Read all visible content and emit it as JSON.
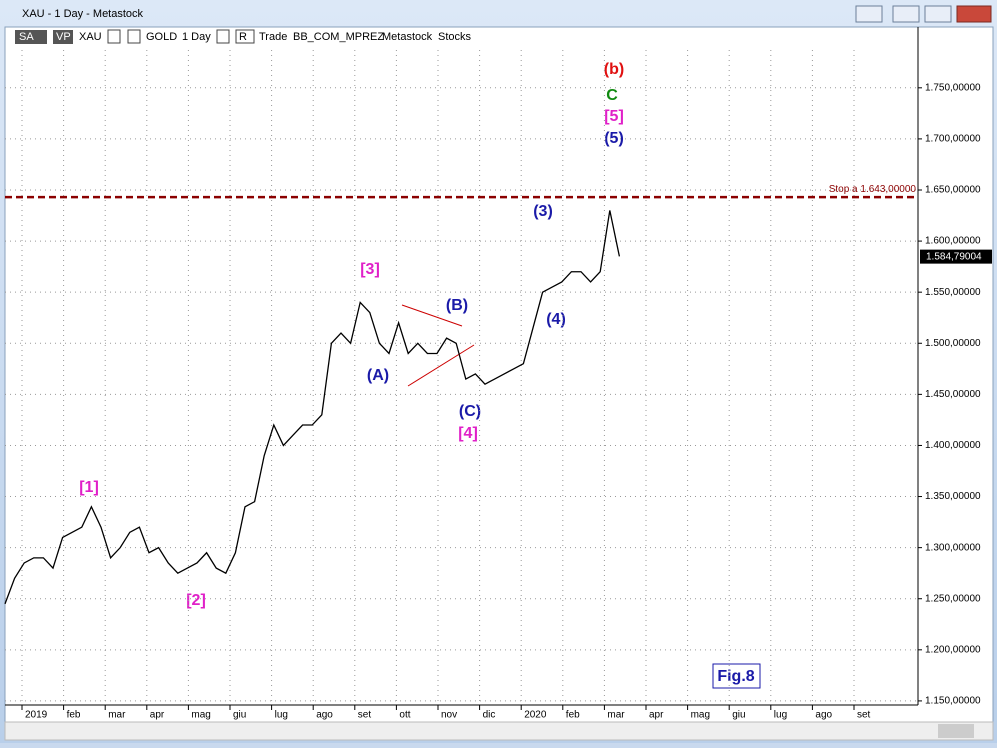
{
  "window_title": "XAU - 1 Day - Metastock",
  "toolbar": [
    "SA",
    "VP",
    "XAU",
    "GOLD",
    "1 Day",
    "R",
    "Trade",
    "BB_COM_MPREZ",
    "Metastock",
    "Stocks"
  ],
  "chart_data": {
    "type": "line",
    "color": "#000000",
    "x_axis_labels": [
      "2019",
      "feb",
      "mar",
      "apr",
      "mag",
      "giu",
      "lug",
      "ago",
      "set",
      "ott",
      "nov",
      "dic",
      "2020",
      "feb",
      "mar",
      "apr",
      "mag",
      "giu",
      "lug",
      "ago",
      "set"
    ],
    "values": [
      1245,
      1270,
      1285,
      1290,
      1290,
      1280,
      1310,
      1315,
      1320,
      1340,
      1320,
      1290,
      1300,
      1315,
      1320,
      1295,
      1300,
      1285,
      1275,
      1280,
      1285,
      1295,
      1280,
      1275,
      1295,
      1340,
      1345,
      1390,
      1420,
      1400,
      1410,
      1420,
      1420,
      1430,
      1500,
      1510,
      1500,
      1540,
      1530,
      1500,
      1490,
      1520,
      1490,
      1500,
      1490,
      1490,
      1505,
      1500,
      1465,
      1470,
      1460,
      1465,
      1470,
      1475,
      1480,
      1515,
      1550,
      1555,
      1560,
      1570,
      1570,
      1560,
      1570,
      1630,
      1585
    ],
    "ylim": [
      1146,
      1787
    ],
    "yticks": [
      {
        "value": 1150,
        "label": "1.150,00000"
      },
      {
        "value": 1200,
        "label": "1.200,00000"
      },
      {
        "value": 1250,
        "label": "1.250,00000"
      },
      {
        "value": 1300,
        "label": "1.300,00000"
      },
      {
        "value": 1350,
        "label": "1.350,00000"
      },
      {
        "value": 1400,
        "label": "1.400,00000"
      },
      {
        "value": 1450,
        "label": "1.450,00000"
      },
      {
        "value": 1500,
        "label": "1.500,00000"
      },
      {
        "value": 1550,
        "label": "1.550,00000"
      },
      {
        "value": 1600,
        "label": "1.600,00000"
      },
      {
        "value": 1650,
        "label": "1.650,00000"
      },
      {
        "value": 1700,
        "label": "1.700,00000"
      },
      {
        "value": 1750,
        "label": "1.750,00000"
      }
    ],
    "grid": true,
    "stop": {
      "value": 1643,
      "label": "Stop a 1.643,00000",
      "color": "#8b0000"
    },
    "last": {
      "value": 1584.79004,
      "label": "1.584,79004"
    },
    "annotations": [
      "(b)",
      "C",
      "[5]",
      "(5)",
      "(3)",
      "[3]",
      "(B)",
      "(4)",
      "(A)",
      "(C)",
      "[4]",
      "[1]",
      "[2]"
    ],
    "figure_label": "Fig.8"
  }
}
